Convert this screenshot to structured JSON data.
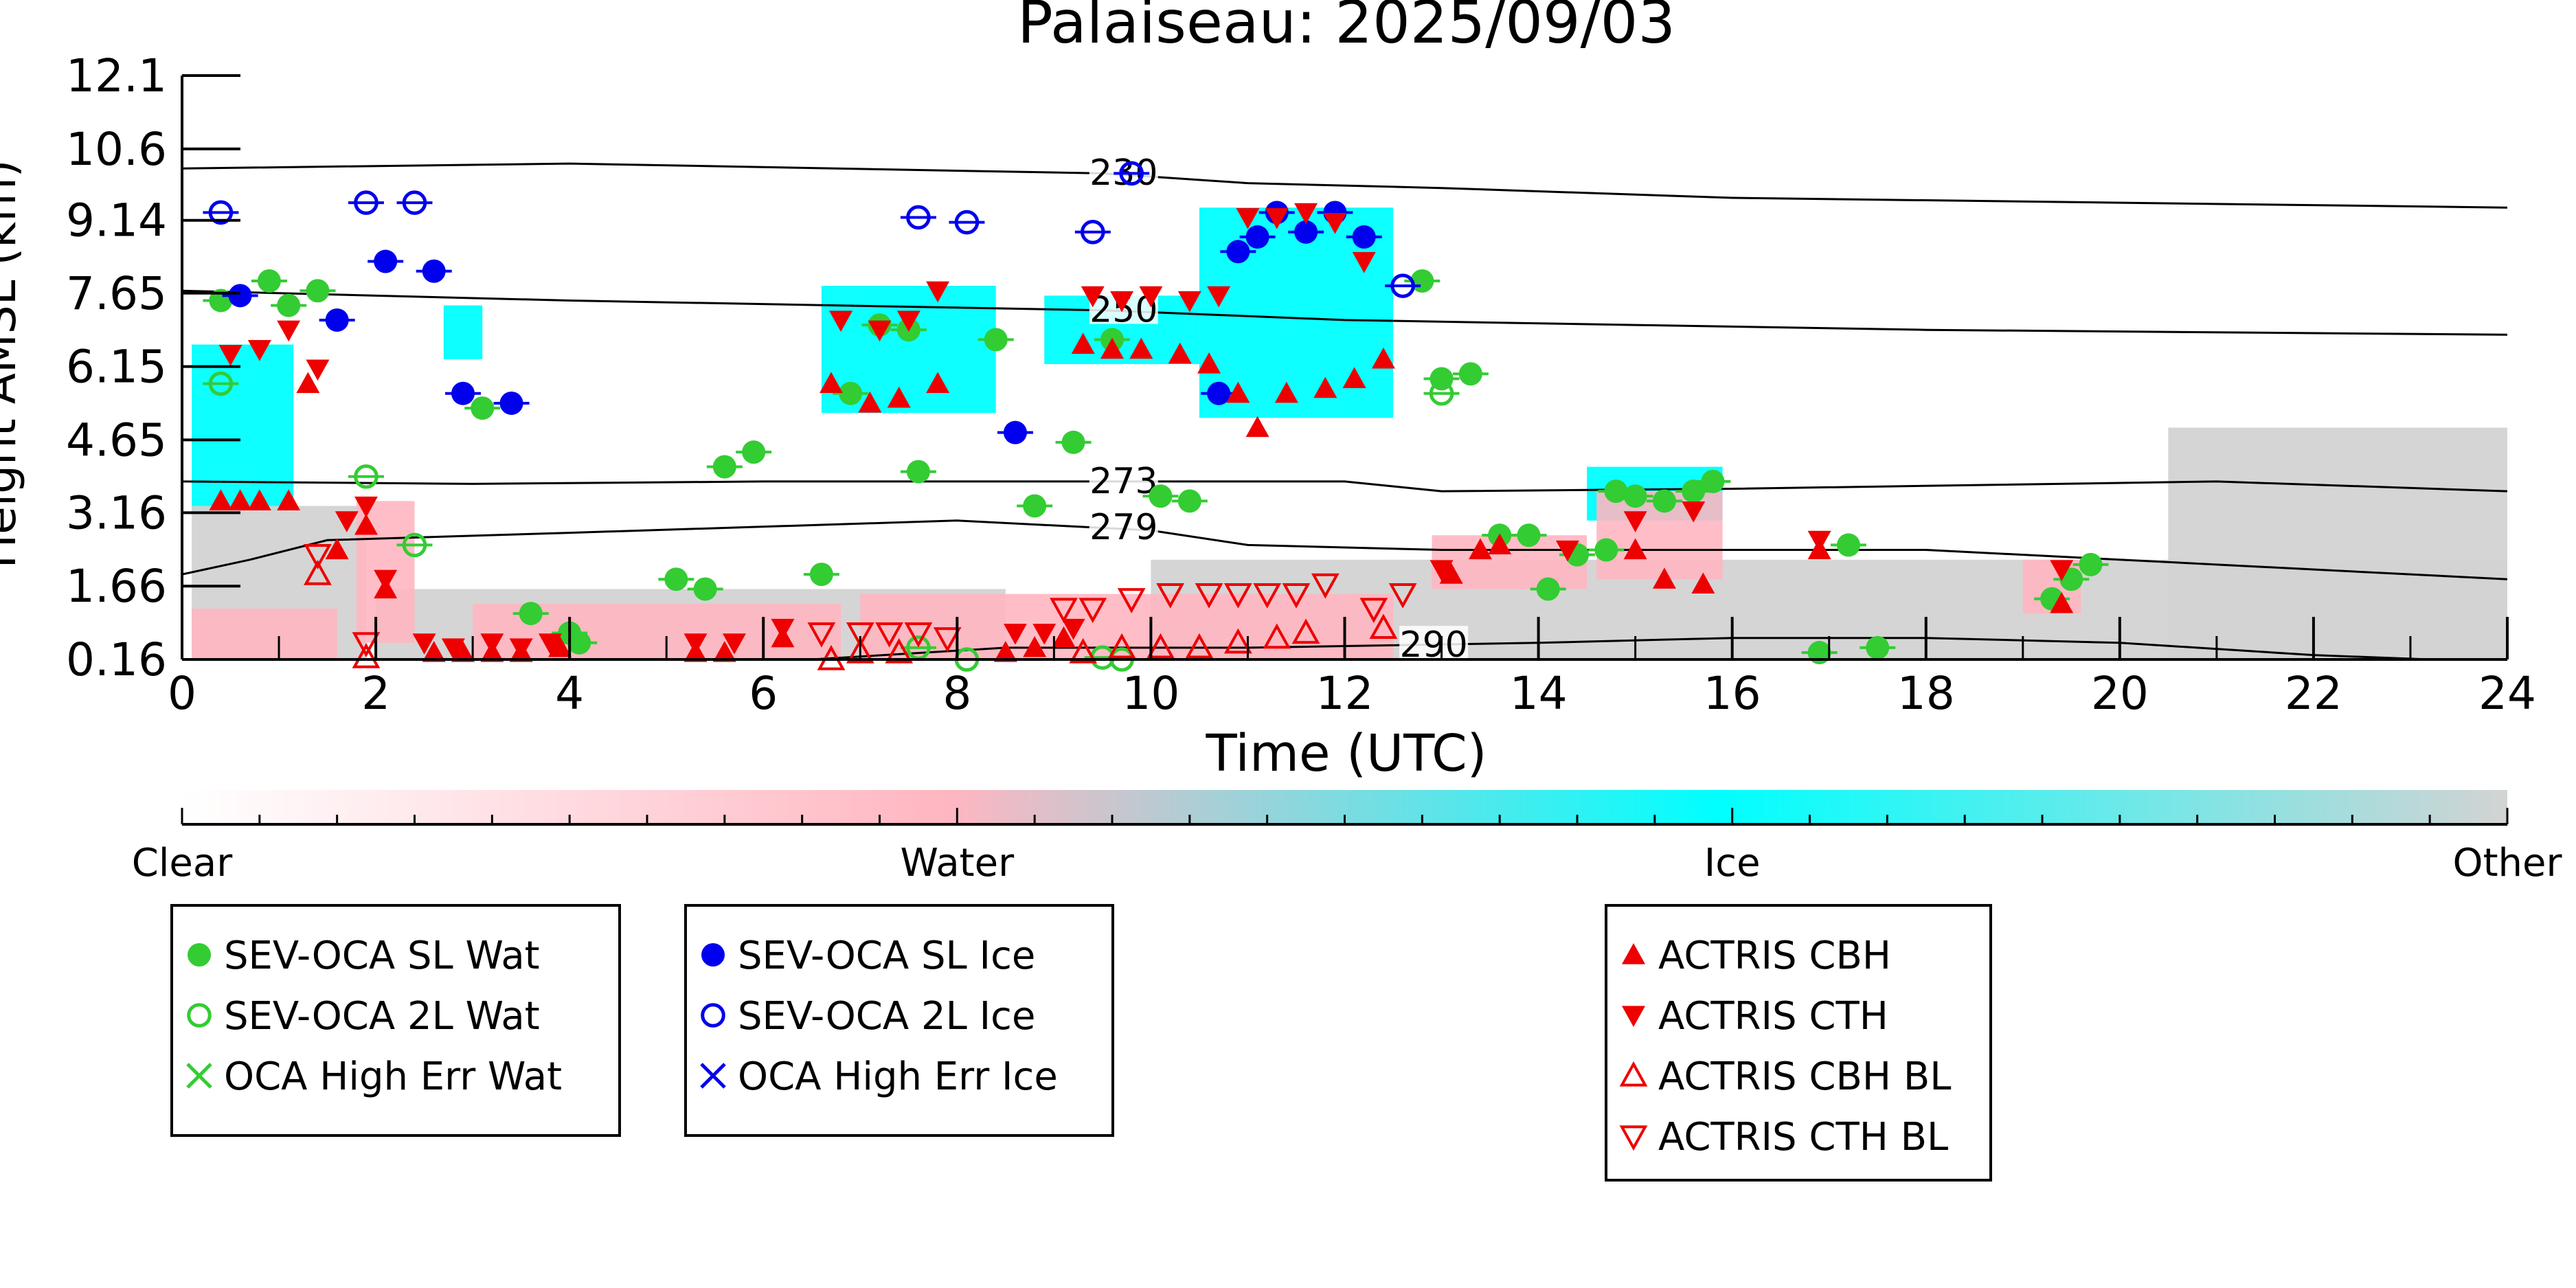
{
  "chart_data": {
    "type": "scatter",
    "title": "Palaiseau: 2025/09/03",
    "xlabel": "Time (UTC)",
    "ylabel": "Height AMSL (km)",
    "xlim": [
      0,
      24
    ],
    "ylim": [
      0.16,
      12.1
    ],
    "x_ticks": [
      "0",
      "2",
      "4",
      "6",
      "8",
      "10",
      "12",
      "14",
      "16",
      "18",
      "20",
      "22",
      "24"
    ],
    "y_ticks": [
      "0.16",
      "1.66",
      "3.16",
      "4.65",
      "6.15",
      "7.65",
      "9.14",
      "10.6",
      "12.1"
    ],
    "grid": false,
    "background_classes": {
      "colorbar_labels": [
        "Clear",
        "Water",
        "Ice",
        "Other"
      ],
      "colors": {
        "clear": "#ffffff",
        "water": "#ffb6c1",
        "ice": "#00ffff",
        "other": "#d3d3d3"
      },
      "regions": [
        {
          "class": "ice",
          "x0": 0.1,
          "x1": 1.15,
          "y0": 3.2,
          "y1": 6.6
        },
        {
          "class": "ice",
          "x0": 2.7,
          "x1": 3.1,
          "y0": 6.3,
          "y1": 7.4
        },
        {
          "class": "ice",
          "x0": 6.6,
          "x1": 8.4,
          "y0": 5.2,
          "y1": 7.8
        },
        {
          "class": "ice",
          "x0": 8.9,
          "x1": 10.5,
          "y0": 6.2,
          "y1": 7.6
        },
        {
          "class": "ice",
          "x0": 10.5,
          "x1": 12.5,
          "y0": 5.1,
          "y1": 9.4
        },
        {
          "class": "ice",
          "x0": 14.5,
          "x1": 15.9,
          "y0": 3.0,
          "y1": 4.1
        },
        {
          "class": "other",
          "x0": 0.1,
          "x1": 1.9,
          "y0": 0.16,
          "y1": 3.3
        },
        {
          "class": "other",
          "x0": 2.0,
          "x1": 8.5,
          "y0": 0.16,
          "y1": 1.6
        },
        {
          "class": "other",
          "x0": 10.0,
          "x1": 24.0,
          "y0": 0.16,
          "y1": 2.2
        },
        {
          "class": "other",
          "x0": 20.5,
          "x1": 24.0,
          "y0": 0.16,
          "y1": 4.9
        },
        {
          "class": "water",
          "x0": 0.1,
          "x1": 1.6,
          "y0": 0.16,
          "y1": 1.2
        },
        {
          "class": "water",
          "x0": 1.8,
          "x1": 2.4,
          "y0": 0.5,
          "y1": 3.4
        },
        {
          "class": "water",
          "x0": 3.0,
          "x1": 6.8,
          "y0": 0.16,
          "y1": 1.3
        },
        {
          "class": "water",
          "x0": 7.0,
          "x1": 12.5,
          "y0": 0.16,
          "y1": 1.5
        },
        {
          "class": "water",
          "x0": 12.9,
          "x1": 14.5,
          "y0": 1.6,
          "y1": 2.7
        },
        {
          "class": "water",
          "x0": 14.6,
          "x1": 15.9,
          "y0": 1.8,
          "y1": 3.6
        },
        {
          "class": "water",
          "x0": 19.0,
          "x1": 19.6,
          "y0": 1.1,
          "y1": 2.2
        }
      ]
    },
    "contours": [
      {
        "label": "230",
        "label_x": 9.4,
        "points": [
          [
            0,
            10.2
          ],
          [
            4,
            10.3
          ],
          [
            9.5,
            10.1
          ],
          [
            11,
            9.9
          ],
          [
            13,
            9.8
          ],
          [
            16,
            9.6
          ],
          [
            20,
            9.5
          ],
          [
            24,
            9.4
          ]
        ]
      },
      {
        "label": "250",
        "label_x": 9.4,
        "points": [
          [
            0,
            7.7
          ],
          [
            4,
            7.5
          ],
          [
            9.5,
            7.3
          ],
          [
            12,
            7.1
          ],
          [
            15,
            7.0
          ],
          [
            18,
            6.9
          ],
          [
            24,
            6.8
          ]
        ]
      },
      {
        "label": "273",
        "label_x": 9.4,
        "points": [
          [
            0,
            3.8
          ],
          [
            3,
            3.75
          ],
          [
            6,
            3.8
          ],
          [
            9.5,
            3.8
          ],
          [
            12,
            3.8
          ],
          [
            13,
            3.6
          ],
          [
            16,
            3.65
          ],
          [
            21,
            3.8
          ],
          [
            24,
            3.6
          ]
        ]
      },
      {
        "label": "279",
        "label_x": 9.4,
        "points": [
          [
            0,
            1.9
          ],
          [
            0.7,
            2.2
          ],
          [
            1.5,
            2.6
          ],
          [
            4,
            2.75
          ],
          [
            8,
            3.0
          ],
          [
            10,
            2.8
          ],
          [
            11,
            2.5
          ],
          [
            13,
            2.4
          ],
          [
            18,
            2.4
          ],
          [
            22,
            2.0
          ],
          [
            24,
            1.8
          ]
        ]
      },
      {
        "label": "290",
        "label_x": 12.6,
        "points": [
          [
            6.5,
            0.16
          ],
          [
            8.5,
            0.4
          ],
          [
            11,
            0.4
          ],
          [
            14,
            0.5
          ],
          [
            16,
            0.6
          ],
          [
            18,
            0.6
          ],
          [
            20,
            0.5
          ],
          [
            22,
            0.25
          ],
          [
            23.2,
            0.16
          ]
        ]
      }
    ],
    "series": [
      {
        "name": "SEV-OCA SL Wat",
        "marker": "filled-circle",
        "color": "#33cc33",
        "points": [
          [
            0.4,
            7.5
          ],
          [
            0.9,
            7.9
          ],
          [
            1.1,
            7.4
          ],
          [
            1.4,
            7.7
          ],
          [
            3.1,
            5.3
          ],
          [
            3.6,
            1.1
          ],
          [
            4.0,
            0.7
          ],
          [
            4.1,
            0.5
          ],
          [
            5.1,
            1.8
          ],
          [
            5.4,
            1.6
          ],
          [
            5.6,
            4.1
          ],
          [
            5.9,
            4.4
          ],
          [
            6.6,
            1.9
          ],
          [
            6.9,
            5.6
          ],
          [
            7.2,
            7.0
          ],
          [
            7.5,
            6.9
          ],
          [
            7.6,
            4.0
          ],
          [
            8.4,
            6.7
          ],
          [
            8.8,
            3.3
          ],
          [
            9.2,
            4.6
          ],
          [
            9.6,
            6.7
          ],
          [
            10.1,
            3.5
          ],
          [
            10.4,
            3.4
          ],
          [
            12.8,
            7.9
          ],
          [
            13.0,
            5.9
          ],
          [
            13.3,
            6.0
          ],
          [
            13.6,
            2.7
          ],
          [
            13.9,
            2.7
          ],
          [
            14.1,
            1.6
          ],
          [
            14.4,
            2.3
          ],
          [
            14.7,
            2.4
          ],
          [
            14.8,
            3.6
          ],
          [
            15.0,
            3.5
          ],
          [
            15.3,
            3.4
          ],
          [
            15.6,
            3.6
          ],
          [
            15.8,
            3.8
          ],
          [
            16.9,
            0.3
          ],
          [
            17.2,
            2.5
          ],
          [
            17.5,
            0.4
          ],
          [
            19.3,
            1.4
          ],
          [
            19.5,
            1.8
          ],
          [
            19.7,
            2.1
          ]
        ]
      },
      {
        "name": "SEV-OCA 2L Wat",
        "marker": "open-circle",
        "color": "#33cc33",
        "points": [
          [
            0.4,
            5.8
          ],
          [
            1.9,
            3.9
          ],
          [
            2.4,
            2.5
          ],
          [
            7.6,
            0.4
          ],
          [
            8.1,
            0.1
          ],
          [
            9.5,
            0.2
          ],
          [
            9.7,
            0.16
          ],
          [
            13.0,
            5.6
          ]
        ]
      },
      {
        "name": "OCA High Err Wat",
        "marker": "x",
        "color": "#33cc33",
        "points": []
      },
      {
        "name": "SEV-OCA SL Ice",
        "marker": "filled-circle",
        "color": "#0000ee",
        "points": [
          [
            0.6,
            7.6
          ],
          [
            1.6,
            7.1
          ],
          [
            2.1,
            8.3
          ],
          [
            2.6,
            8.1
          ],
          [
            2.9,
            5.6
          ],
          [
            3.4,
            5.4
          ],
          [
            8.6,
            4.8
          ],
          [
            10.7,
            5.6
          ],
          [
            10.9,
            8.5
          ],
          [
            11.1,
            8.8
          ],
          [
            11.3,
            9.3
          ],
          [
            11.6,
            8.9
          ],
          [
            11.9,
            9.3
          ],
          [
            12.2,
            8.8
          ]
        ]
      },
      {
        "name": "SEV-OCA 2L Ice",
        "marker": "open-circle",
        "color": "#0000ee",
        "points": [
          [
            0.4,
            9.3
          ],
          [
            1.9,
            9.5
          ],
          [
            2.4,
            9.5
          ],
          [
            7.6,
            9.2
          ],
          [
            8.1,
            9.1
          ],
          [
            9.4,
            8.9
          ],
          [
            9.8,
            10.1
          ],
          [
            12.6,
            7.8
          ]
        ]
      },
      {
        "name": "OCA High Err Ice",
        "marker": "x",
        "color": "#0000ee",
        "points": []
      },
      {
        "name": "ACTRIS CBH",
        "marker": "triangle-up",
        "color": "#ee0000",
        "points": [
          [
            0.4,
            3.4
          ],
          [
            0.6,
            3.4
          ],
          [
            0.8,
            3.4
          ],
          [
            1.1,
            3.4
          ],
          [
            1.3,
            5.8
          ],
          [
            1.6,
            2.4
          ],
          [
            1.9,
            2.9
          ],
          [
            2.1,
            1.6
          ],
          [
            2.6,
            0.3
          ],
          [
            2.9,
            0.3
          ],
          [
            3.2,
            0.3
          ],
          [
            3.5,
            0.3
          ],
          [
            3.9,
            0.4
          ],
          [
            5.3,
            0.3
          ],
          [
            5.6,
            0.3
          ],
          [
            6.2,
            0.6
          ],
          [
            6.7,
            5.8
          ],
          [
            7.1,
            5.4
          ],
          [
            7.4,
            5.5
          ],
          [
            7.8,
            5.8
          ],
          [
            8.5,
            0.3
          ],
          [
            8.8,
            0.4
          ],
          [
            9.1,
            0.6
          ],
          [
            9.3,
            6.6
          ],
          [
            9.6,
            6.5
          ],
          [
            9.9,
            6.5
          ],
          [
            10.3,
            6.4
          ],
          [
            10.6,
            6.2
          ],
          [
            10.9,
            5.6
          ],
          [
            11.1,
            4.9
          ],
          [
            11.4,
            5.6
          ],
          [
            11.8,
            5.7
          ],
          [
            12.1,
            5.9
          ],
          [
            12.4,
            6.3
          ],
          [
            13.1,
            1.9
          ],
          [
            13.4,
            2.4
          ],
          [
            13.6,
            2.5
          ],
          [
            15.0,
            2.4
          ],
          [
            15.3,
            1.8
          ],
          [
            15.7,
            1.7
          ],
          [
            16.9,
            2.4
          ],
          [
            19.4,
            1.3
          ]
        ]
      },
      {
        "name": "ACTRIS CTH",
        "marker": "triangle-down",
        "color": "#ee0000",
        "points": [
          [
            0.5,
            6.4
          ],
          [
            0.8,
            6.5
          ],
          [
            1.1,
            6.9
          ],
          [
            1.4,
            6.1
          ],
          [
            1.7,
            3.0
          ],
          [
            1.9,
            3.3
          ],
          [
            2.1,
            1.8
          ],
          [
            2.5,
            0.5
          ],
          [
            2.8,
            0.4
          ],
          [
            3.2,
            0.5
          ],
          [
            3.5,
            0.4
          ],
          [
            3.8,
            0.5
          ],
          [
            5.3,
            0.5
          ],
          [
            5.7,
            0.5
          ],
          [
            6.2,
            0.8
          ],
          [
            6.8,
            7.1
          ],
          [
            7.2,
            6.9
          ],
          [
            7.5,
            7.1
          ],
          [
            7.8,
            7.7
          ],
          [
            8.6,
            0.7
          ],
          [
            8.9,
            0.7
          ],
          [
            9.2,
            0.8
          ],
          [
            9.4,
            7.6
          ],
          [
            9.7,
            7.5
          ],
          [
            10.0,
            7.6
          ],
          [
            10.4,
            7.5
          ],
          [
            10.7,
            7.6
          ],
          [
            11.0,
            9.2
          ],
          [
            11.3,
            9.2
          ],
          [
            11.6,
            9.3
          ],
          [
            11.9,
            9.1
          ],
          [
            12.2,
            8.3
          ],
          [
            13.0,
            2.0
          ],
          [
            14.3,
            2.4
          ],
          [
            15.0,
            3.0
          ],
          [
            15.6,
            3.2
          ],
          [
            16.9,
            2.6
          ],
          [
            19.4,
            2.0
          ]
        ]
      },
      {
        "name": "ACTRIS CBH BL",
        "marker": "open-triangle-up",
        "color": "#ee0000",
        "points": [
          [
            1.4,
            1.9
          ],
          [
            1.9,
            0.2
          ],
          [
            6.7,
            0.16
          ],
          [
            7.0,
            0.3
          ],
          [
            7.4,
            0.3
          ],
          [
            9.3,
            0.3
          ],
          [
            9.7,
            0.4
          ],
          [
            10.1,
            0.4
          ],
          [
            10.5,
            0.4
          ],
          [
            10.9,
            0.5
          ],
          [
            11.3,
            0.6
          ],
          [
            11.6,
            0.7
          ],
          [
            12.4,
            0.8
          ]
        ]
      },
      {
        "name": "ACTRIS CTH BL",
        "marker": "open-triangle-down",
        "color": "#ee0000",
        "points": [
          [
            1.4,
            2.3
          ],
          [
            1.9,
            0.5
          ],
          [
            6.6,
            0.7
          ],
          [
            7.0,
            0.7
          ],
          [
            7.3,
            0.7
          ],
          [
            7.6,
            0.7
          ],
          [
            7.9,
            0.6
          ],
          [
            9.1,
            1.2
          ],
          [
            9.4,
            1.2
          ],
          [
            9.8,
            1.4
          ],
          [
            10.2,
            1.5
          ],
          [
            10.6,
            1.5
          ],
          [
            10.9,
            1.5
          ],
          [
            11.2,
            1.5
          ],
          [
            11.5,
            1.5
          ],
          [
            11.8,
            1.7
          ],
          [
            12.3,
            1.2
          ],
          [
            12.6,
            1.5
          ]
        ]
      }
    ],
    "legend": [
      [
        "SEV-OCA SL Wat",
        "SEV-OCA 2L Wat",
        "OCA High Err Wat"
      ],
      [
        "SEV-OCA SL Ice",
        "SEV-OCA 2L Ice",
        "OCA High Err Ice"
      ],
      [
        "ACTRIS CBH",
        "ACTRIS CTH",
        "ACTRIS CBH BL",
        "ACTRIS CTH BL"
      ]
    ]
  }
}
